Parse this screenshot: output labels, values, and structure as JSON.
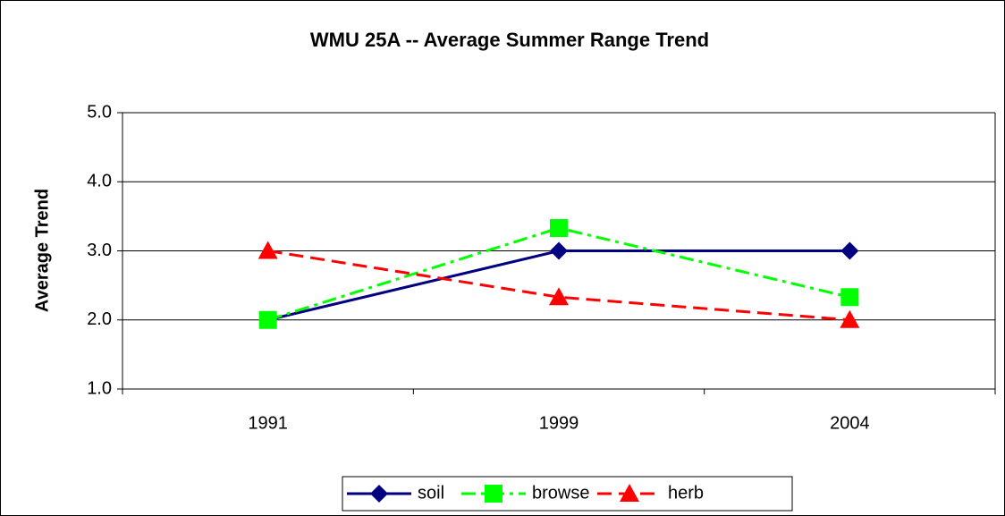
{
  "chart_data": {
    "type": "line",
    "title": "WMU 25A -- Average Summer Range Trend",
    "y_label": "Average Trend",
    "categories": [
      "1991",
      "1999",
      "2004"
    ],
    "series": [
      {
        "name": "soil",
        "color": "#000080",
        "dash": "solid",
        "marker": "diamond",
        "values": [
          2.0,
          3.0,
          3.0
        ]
      },
      {
        "name": "browse",
        "color": "#00ff00",
        "dash": "dashdot",
        "marker": "square",
        "values": [
          2.0,
          3.33,
          2.33
        ]
      },
      {
        "name": "herb",
        "color": "#ff0000",
        "dash": "dashed",
        "marker": "triangle",
        "values": [
          3.0,
          2.33,
          2.0
        ]
      }
    ],
    "ylim": [
      1,
      5
    ],
    "yticks": [
      {
        "value": 1,
        "label": "1.0"
      },
      {
        "value": 2,
        "label": "2.0"
      },
      {
        "value": 3,
        "label": "3.0"
      },
      {
        "value": 4,
        "label": "4.0"
      },
      {
        "value": 5,
        "label": "5.0"
      }
    ],
    "grid": true,
    "legend": "bottom"
  }
}
